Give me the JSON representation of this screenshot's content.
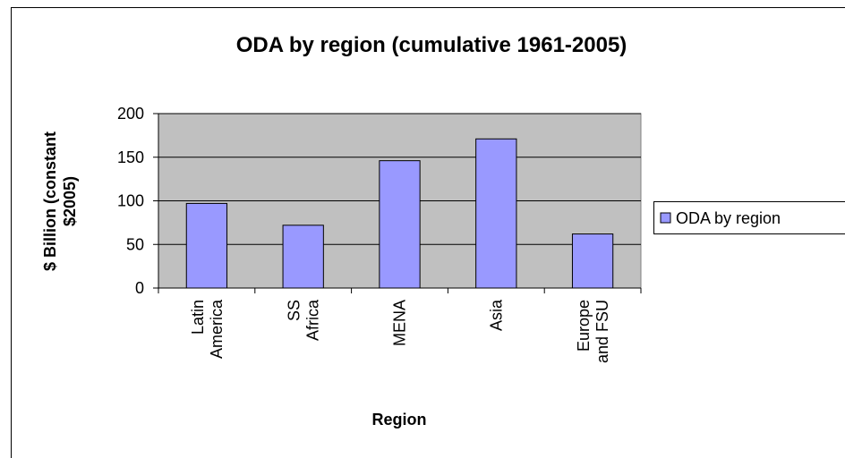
{
  "chart_data": {
    "type": "bar",
    "title": "ODA by region (cumulative 1961-2005)",
    "x_label": "Region",
    "y_label": "$ Billion (constant\n$2005)",
    "categories": [
      "Latin\nAmerica",
      "SS\n  Africa",
      "MENA",
      "Asia",
      "Europe\nand FSU"
    ],
    "series": [
      {
        "name": "ODA by region",
        "color": "#9999ff",
        "values": [
          97,
          72,
          146,
          171,
          62
        ]
      }
    ],
    "ylim": [
      0,
      200
    ],
    "yticks": [
      0,
      50,
      100,
      150,
      200
    ],
    "grid": true,
    "legend": "right"
  }
}
